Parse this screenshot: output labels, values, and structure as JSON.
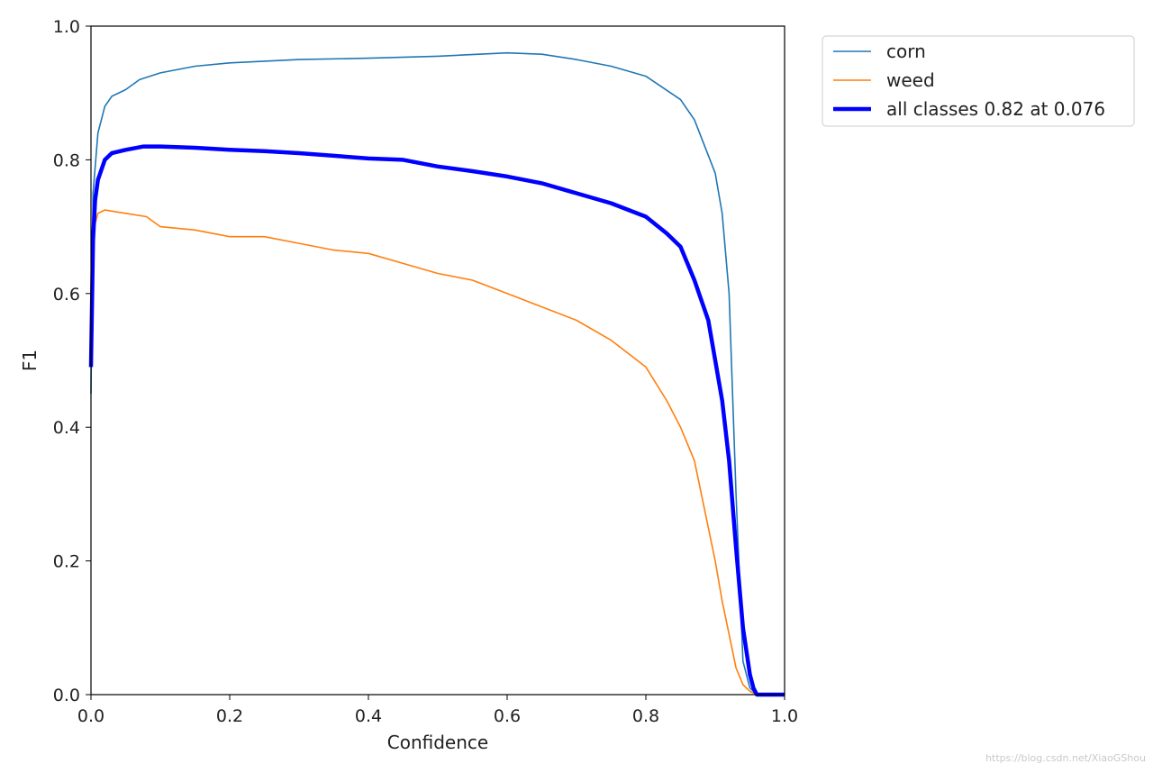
{
  "chart_data": {
    "type": "line",
    "title": "",
    "xlabel": "Confidence",
    "ylabel": "F1",
    "xlim": [
      0.0,
      1.0
    ],
    "ylim": [
      0.0,
      1.0
    ],
    "x_ticks": [
      "0.0",
      "0.2",
      "0.4",
      "0.6",
      "0.8",
      "1.0"
    ],
    "y_ticks": [
      "0.0",
      "0.2",
      "0.4",
      "0.6",
      "0.8",
      "1.0"
    ],
    "grid": false,
    "legend_position": "outside-top-right",
    "series": [
      {
        "name": "corn",
        "color": "#1f77b4",
        "linewidth": "thin",
        "x": [
          0.0,
          0.003,
          0.01,
          0.02,
          0.03,
          0.05,
          0.07,
          0.1,
          0.15,
          0.2,
          0.3,
          0.4,
          0.5,
          0.6,
          0.65,
          0.7,
          0.75,
          0.8,
          0.85,
          0.87,
          0.9,
          0.91,
          0.92,
          0.93,
          0.94,
          0.95,
          0.96,
          1.0
        ],
        "y": [
          0.45,
          0.75,
          0.84,
          0.88,
          0.895,
          0.905,
          0.92,
          0.93,
          0.94,
          0.945,
          0.95,
          0.952,
          0.955,
          0.96,
          0.958,
          0.95,
          0.94,
          0.925,
          0.89,
          0.86,
          0.78,
          0.72,
          0.6,
          0.3,
          0.05,
          0.01,
          0.0,
          0.0
        ]
      },
      {
        "name": "weed",
        "color": "#ff7f0e",
        "linewidth": "thin",
        "x": [
          0.0,
          0.005,
          0.01,
          0.02,
          0.05,
          0.08,
          0.1,
          0.15,
          0.2,
          0.25,
          0.3,
          0.35,
          0.4,
          0.45,
          0.5,
          0.55,
          0.6,
          0.65,
          0.7,
          0.75,
          0.8,
          0.83,
          0.85,
          0.87,
          0.89,
          0.9,
          0.91,
          0.92,
          0.93,
          0.94,
          0.95,
          0.96,
          1.0
        ],
        "y": [
          0.5,
          0.7,
          0.72,
          0.725,
          0.72,
          0.715,
          0.7,
          0.695,
          0.685,
          0.685,
          0.675,
          0.665,
          0.66,
          0.645,
          0.63,
          0.62,
          0.6,
          0.58,
          0.56,
          0.53,
          0.49,
          0.44,
          0.4,
          0.35,
          0.25,
          0.2,
          0.14,
          0.09,
          0.04,
          0.015,
          0.005,
          0.0,
          0.0
        ]
      },
      {
        "name": "all classes 0.82 at 0.076",
        "color": "#0000ff",
        "linewidth": "thick",
        "x": [
          0.0,
          0.003,
          0.006,
          0.01,
          0.02,
          0.03,
          0.05,
          0.076,
          0.1,
          0.15,
          0.2,
          0.25,
          0.3,
          0.35,
          0.4,
          0.45,
          0.5,
          0.55,
          0.6,
          0.65,
          0.7,
          0.75,
          0.8,
          0.83,
          0.85,
          0.87,
          0.89,
          0.9,
          0.91,
          0.92,
          0.93,
          0.94,
          0.95,
          0.955,
          0.96,
          1.0
        ],
        "y": [
          0.49,
          0.68,
          0.74,
          0.77,
          0.8,
          0.81,
          0.815,
          0.82,
          0.82,
          0.818,
          0.815,
          0.813,
          0.81,
          0.806,
          0.802,
          0.8,
          0.79,
          0.783,
          0.775,
          0.765,
          0.75,
          0.735,
          0.715,
          0.69,
          0.67,
          0.62,
          0.56,
          0.5,
          0.44,
          0.35,
          0.22,
          0.1,
          0.03,
          0.01,
          0.0,
          0.0
        ]
      }
    ]
  },
  "watermark": "https://blog.csdn.net/XiaoGShou"
}
